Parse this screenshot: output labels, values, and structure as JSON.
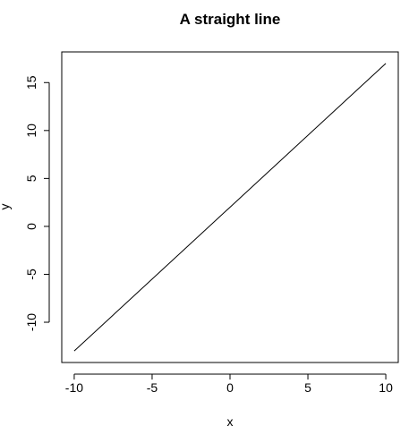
{
  "chart_data": {
    "type": "line",
    "title": "A straight line",
    "xlabel": "x",
    "ylabel": "y",
    "xlim": [
      -10.8,
      10.8
    ],
    "ylim": [
      -14.2,
      18.2
    ],
    "x_ticks": [
      -10,
      -5,
      0,
      5,
      10
    ],
    "x_tick_labels": [
      "-10",
      "-5",
      "0",
      "5",
      "10"
    ],
    "y_ticks": [
      -10,
      -5,
      0,
      5,
      10,
      15
    ],
    "y_tick_labels": [
      "-10",
      "-5",
      "0",
      "5",
      "10",
      "15"
    ],
    "grid": false,
    "legend": "none",
    "series": [
      {
        "name": "y",
        "x": [
          -10,
          10
        ],
        "y": [
          -13,
          17
        ],
        "color": "#000000"
      }
    ]
  }
}
